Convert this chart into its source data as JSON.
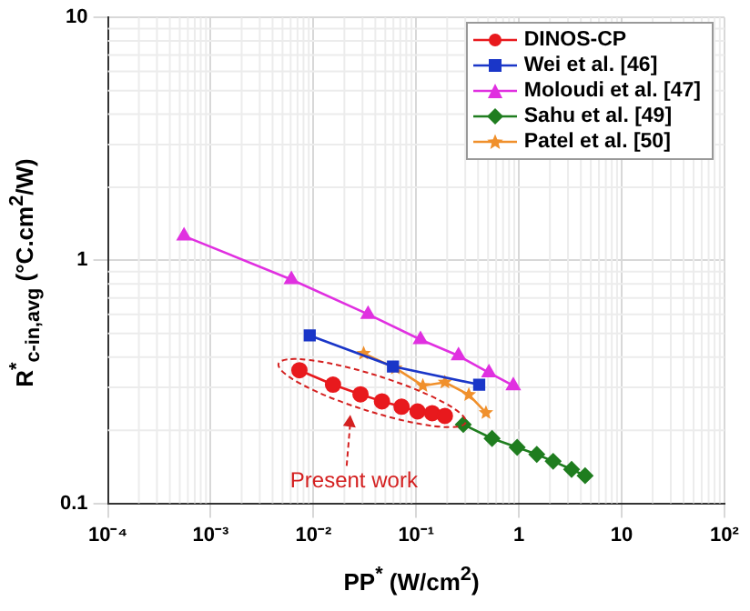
{
  "chart_data": {
    "type": "line",
    "xlabel": "PP$^{*}$ (W/cm$^{2}$)",
    "ylabel": "R$^{*}$$_{c-in,avg}$ (°C.cm$^{2}$/W)",
    "log": "xy",
    "grid": true,
    "legend": "top right",
    "xlim": [
      0.0001,
      100
    ],
    "xticks": [
      {
        "value": 0.0001,
        "label": "10⁻⁴"
      },
      {
        "value": 0.001,
        "label": "10⁻³"
      },
      {
        "value": 0.01,
        "label": "10⁻²"
      },
      {
        "value": 0.1,
        "label": "10⁻¹"
      },
      1,
      10,
      {
        "value": 100,
        "label": "10²"
      }
    ],
    "ylim": [
      0.1,
      10
    ],
    "yticks": [
      0.1,
      1,
      10
    ],
    "annotations": [
      "Present work"
    ],
    "series": [
      {
        "name": "DINOS-CP",
        "color": "#e8191d",
        "marker": "circle",
        "x": [
          0.0073,
          0.0155,
          0.0287,
          0.0464,
          0.072,
          0.103,
          0.143,
          0.19
        ],
        "values": [
          0.353,
          0.308,
          0.281,
          0.263,
          0.25,
          0.239,
          0.235,
          0.229
        ]
      },
      {
        "name": "Wei et al. [46]",
        "color": "#1a36c8",
        "marker": "square",
        "x": [
          0.0092,
          0.0594,
          0.41
        ],
        "values": [
          0.491,
          0.366,
          0.308
        ]
      },
      {
        "name": "Moloudi et al. [47]",
        "color": "#e030e0",
        "marker": "triangle",
        "x": [
          0.00055,
          0.0061,
          0.034,
          0.11,
          0.258,
          0.51,
          0.88
        ],
        "values": [
          1.26,
          0.834,
          0.6,
          0.472,
          0.405,
          0.345,
          0.305
        ]
      },
      {
        "name": "Sahu et al. [49]",
        "color": "#1f7d1f",
        "marker": "diamond",
        "x": [
          0.287,
          0.547,
          0.96,
          1.49,
          2.15,
          3.25,
          4.4
        ],
        "values": [
          0.211,
          0.185,
          0.17,
          0.159,
          0.149,
          0.138,
          0.13
        ]
      },
      {
        "name": "Patel et al. [50]",
        "color": "#f0902c",
        "marker": "star",
        "x": [
          0.0308,
          0.0628,
          0.116,
          0.19,
          0.325,
          0.477
        ],
        "values": [
          0.414,
          0.36,
          0.305,
          0.315,
          0.28,
          0.236
        ]
      }
    ]
  }
}
